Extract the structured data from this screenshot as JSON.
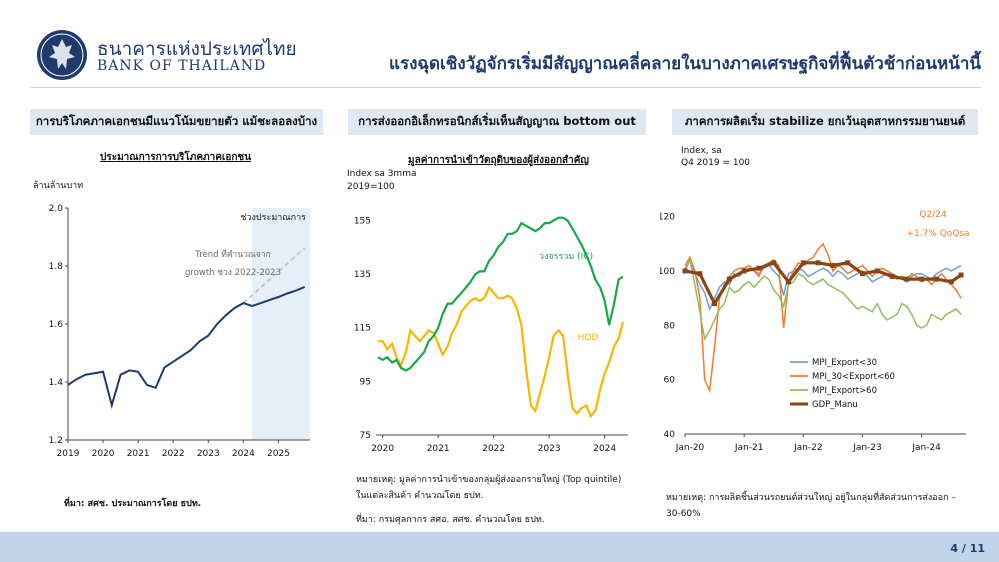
{
  "header": {
    "brand_th": "ธนาคารแห่งประเทศไทย",
    "brand_en": "BANK OF THAILAND",
    "title": "แรงฉุดเชิงวัฏจักรเริ่มมีสัญญาณคลี่คลายในบางภาคเศรษฐกิจที่ฟื้นตัวช้าก่อนหน้านี้"
  },
  "panels": [
    {
      "heading": "การบริโภคภาคเอกชนมีแนวโน้มขยายตัว แม้ชะลอลงบ้าง",
      "subheading": "ประมาณการการบริโภคภาคเอกชน",
      "unit_label": "ล้านล้านบาท",
      "source": "ที่มา: สศช. ประมาณการโดย ธปท."
    },
    {
      "heading": "การส่งออกอิเล็กทรอนิกส์เริ่มเห็นสัญญาณ bottom out",
      "subheading": "มูลค่าการนำเข้าวัตถุดิบของผู้ส่งออกสำคัญ",
      "unit_label_1": "Index sa 3mma",
      "unit_label_2": "2019=100",
      "note_1": "หมายเหตุ: มูลค่าการนำเข้าของกลุ่มผู้ส่งออกรายใหญ่ (Top quintile)",
      "note_2": "ในแต่ละสินค้า คำนวณโดย ธปท.",
      "source": "ที่มา: กรมศุลกากร สศอ. สศช. คำนวณโดย ธปท."
    },
    {
      "heading": "ภาคการผลิตเริ่ม stabilize ยกเว้นอุตสาหกรรมยานยนต์",
      "unit_label_1": "Index, sa",
      "unit_label_2": "Q4 2019 = 100",
      "note_1": "หมายเหตุ: การผลิตชิ้นส่วนรถยนต์ส่วนใหญ่ อยู่ในกลุ่มที่สัดส่วนการส่งออก –",
      "note_2": "30-60%"
    }
  ],
  "footer": {
    "page": "4 / 11"
  },
  "colors": {
    "navy": "#1f3b6e",
    "chart1_line": "#1f3b6e",
    "chart1_trend": "#c8c8c8",
    "chart1_forecast_shade": "#e6eef7",
    "ic": "#1aa64a",
    "hdd": "#f5b800",
    "mpi_lt30": "#6f9fd8",
    "mpi_30_60": "#ed7d31",
    "mpi_gt60": "#8fbf5a",
    "gdp_manu": "#8b4513",
    "footer_bar": "#c2d4ea"
  },
  "chart_data": [
    {
      "type": "line",
      "title": "ประมาณการการบริโภคภาคเอกชน",
      "ylabel": "ล้านล้านบาท",
      "ylim": [
        1.2,
        2.0
      ],
      "yticks": [
        "1.2",
        "1.4",
        "1.6",
        "1.8",
        "2.0"
      ],
      "xticks": [
        "2019",
        "2020",
        "2021",
        "2022",
        "2023",
        "2024",
        "2025"
      ],
      "forecast_label": "ช่วงประมาณการ",
      "forecast_start": 2024.25,
      "trend_annotation_1": "Trend ที่คำนวณจาก",
      "trend_annotation_2": "growth ช่วง 2022-2023",
      "series": [
        {
          "x": [
            2019.0,
            2019.25,
            2019.5,
            2019.75,
            2020.0,
            2020.25,
            2020.5,
            2020.75,
            2021.0,
            2021.25,
            2021.5,
            2021.75,
            2022.0,
            2022.25,
            2022.5,
            2022.75,
            2023.0,
            2023.25,
            2023.5,
            2023.75,
            2024.0,
            2024.25,
            2024.5,
            2024.75,
            2025.0,
            2025.25,
            2025.5,
            2025.75
          ],
          "values": [
            1.39,
            1.41,
            1.425,
            1.43,
            1.435,
            1.32,
            1.425,
            1.44,
            1.435,
            1.39,
            1.38,
            1.45,
            1.47,
            1.49,
            1.51,
            1.54,
            1.56,
            1.6,
            1.63,
            1.655,
            1.672,
            1.662,
            1.672,
            1.683,
            1.693,
            1.705,
            1.715,
            1.728
          ]
        },
        {
          "x": [
            2024.0,
            2025.75
          ],
          "values": [
            1.672,
            1.862
          ]
        }
      ]
    },
    {
      "type": "line",
      "ylabel": "Index sa 3mma",
      "ylim": [
        75,
        160
      ],
      "yticks": [
        "75",
        "95",
        "115",
        "135",
        "155"
      ],
      "xticks": [
        "2020",
        "2021",
        "2022",
        "2023",
        "2024"
      ],
      "series": [
        {
          "name": "วงจรรวม (IC)",
          "x": [
            2019.92,
            2020.0,
            2020.08,
            2020.17,
            2020.25,
            2020.33,
            2020.42,
            2020.5,
            2020.58,
            2020.67,
            2020.75,
            2020.83,
            2020.92,
            2021.0,
            2021.08,
            2021.17,
            2021.25,
            2021.33,
            2021.42,
            2021.5,
            2021.58,
            2021.67,
            2021.75,
            2021.83,
            2021.92,
            2022.0,
            2022.08,
            2022.17,
            2022.25,
            2022.33,
            2022.42,
            2022.5,
            2022.58,
            2022.67,
            2022.75,
            2022.83,
            2022.92,
            2023.0,
            2023.08,
            2023.17,
            2023.25,
            2023.33,
            2023.42,
            2023.5,
            2023.58,
            2023.67,
            2023.75,
            2023.83,
            2023.92,
            2024.0,
            2024.08,
            2024.17,
            2024.25,
            2024.33
          ],
          "values": [
            104,
            103,
            104,
            102,
            103,
            100,
            99,
            100,
            102,
            104,
            106,
            110,
            112,
            115,
            120,
            124,
            124,
            126,
            128,
            130,
            132,
            135,
            136,
            136,
            140,
            142,
            145,
            147,
            150,
            150,
            151,
            154,
            153,
            152,
            151,
            152,
            154,
            154,
            155,
            156,
            156,
            155,
            152,
            149,
            146,
            142,
            138,
            133,
            130,
            125,
            116,
            124,
            133,
            134
          ]
        },
        {
          "name": "HDD",
          "x": [
            2019.92,
            2020.0,
            2020.08,
            2020.17,
            2020.25,
            2020.33,
            2020.42,
            2020.5,
            2020.58,
            2020.67,
            2020.75,
            2020.83,
            2020.92,
            2021.0,
            2021.08,
            2021.17,
            2021.25,
            2021.33,
            2021.42,
            2021.5,
            2021.58,
            2021.67,
            2021.75,
            2021.83,
            2021.92,
            2022.0,
            2022.08,
            2022.17,
            2022.25,
            2022.33,
            2022.42,
            2022.5,
            2022.58,
            2022.67,
            2022.75,
            2022.83,
            2022.92,
            2023.0,
            2023.08,
            2023.17,
            2023.25,
            2023.33,
            2023.42,
            2023.5,
            2023.58,
            2023.67,
            2023.75,
            2023.83,
            2023.92,
            2024.0,
            2024.08,
            2024.17,
            2024.25,
            2024.33
          ],
          "values": [
            110,
            110,
            107,
            109,
            104,
            101,
            106,
            114,
            112,
            110,
            112,
            114,
            113,
            109,
            105,
            108,
            113,
            116,
            121,
            123,
            125,
            126,
            125,
            126,
            130,
            128,
            126,
            126,
            127,
            126,
            122,
            116,
            100,
            86,
            84,
            90,
            97,
            104,
            112,
            114,
            112,
            98,
            85,
            83,
            85,
            86,
            82,
            84,
            92,
            98,
            102,
            108,
            111,
            117
          ]
        }
      ]
    },
    {
      "type": "line",
      "ylabel": "Index, sa",
      "ylim": [
        40,
        125
      ],
      "yticks": [
        "40",
        "60",
        "80",
        "100",
        "120"
      ],
      "xticks": [
        "Jan-20",
        "Jan-21",
        "Jan-22",
        "Jan-23",
        "Jan-24"
      ],
      "annotation_1": "Q2/24",
      "annotation_2": "+1.7% QoQsa",
      "series": [
        {
          "name": "MPI_Export<30",
          "x": [
            0,
            1,
            2,
            3,
            4,
            5,
            6,
            7,
            8,
            9,
            10,
            11,
            12,
            13,
            14,
            15,
            16,
            17,
            18,
            19,
            20,
            21,
            22,
            23,
            24,
            25,
            26,
            27,
            28,
            29,
            30,
            31,
            32,
            33,
            34,
            35,
            36,
            37,
            38,
            39,
            40,
            41,
            42,
            43,
            44,
            45,
            46,
            47,
            48,
            49,
            50,
            51,
            52,
            53,
            54,
            55,
            56
          ],
          "values": [
            100,
            104,
            99,
            95,
            92,
            86,
            90,
            94,
            96,
            95,
            99,
            98,
            100,
            101,
            100,
            99,
            101,
            102,
            100,
            98,
            91,
            99,
            100,
            101,
            100,
            98,
            99,
            100,
            101,
            100,
            98,
            100,
            99,
            97,
            98,
            99,
            100,
            98,
            96,
            97,
            98,
            99,
            99,
            98,
            97,
            96,
            98,
            99,
            99,
            98,
            97,
            99,
            100,
            101,
            100,
            101,
            102
          ]
        },
        {
          "name": "MPI_30<Export<60",
          "x": [
            0,
            1,
            2,
            3,
            4,
            5,
            6,
            7,
            8,
            9,
            10,
            11,
            12,
            13,
            14,
            15,
            16,
            17,
            18,
            19,
            20,
            21,
            22,
            23,
            24,
            25,
            26,
            27,
            28,
            29,
            30,
            31,
            32,
            33,
            34,
            35,
            36,
            37,
            38,
            39,
            40,
            41,
            42,
            43,
            44,
            45,
            46,
            47,
            48,
            49,
            50,
            51,
            52,
            53,
            54,
            55,
            56
          ],
          "values": [
            102,
            105,
            100,
            90,
            60,
            56,
            72,
            90,
            95,
            98,
            100,
            101,
            101,
            102,
            100,
            98,
            102,
            103,
            104,
            102,
            79,
            96,
            100,
            103,
            102,
            104,
            105,
            108,
            110,
            106,
            100,
            102,
            101,
            99,
            100,
            101,
            102,
            100,
            98,
            100,
            101,
            100,
            99,
            97,
            98,
            97,
            99,
            98,
            96,
            97,
            95,
            97,
            99,
            97,
            95,
            93,
            90
          ]
        },
        {
          "name": "MPI_Export>60",
          "x": [
            0,
            1,
            2,
            3,
            4,
            5,
            6,
            7,
            8,
            9,
            10,
            11,
            12,
            13,
            14,
            15,
            16,
            17,
            18,
            19,
            20,
            21,
            22,
            23,
            24,
            25,
            26,
            27,
            28,
            29,
            30,
            31,
            32,
            33,
            34,
            35,
            36,
            37,
            38,
            39,
            40,
            41,
            42,
            43,
            44,
            45,
            46,
            47,
            48,
            49,
            50,
            51,
            52,
            53,
            54,
            55,
            56
          ],
          "values": [
            101,
            104,
            95,
            85,
            75,
            78,
            82,
            86,
            88,
            94,
            92,
            93,
            95,
            96,
            94,
            96,
            98,
            97,
            93,
            91,
            87,
            95,
            96,
            99,
            98,
            96,
            95,
            96,
            97,
            95,
            94,
            93,
            92,
            90,
            88,
            86,
            87,
            86,
            85,
            88,
            84,
            82,
            83,
            84,
            88,
            87,
            84,
            80,
            79,
            80,
            84,
            83,
            82,
            84,
            85,
            86,
            84
          ]
        },
        {
          "name": "GDP_Manu",
          "x": [
            0,
            3,
            6,
            9,
            12,
            15,
            18,
            21,
            24,
            27,
            30,
            33,
            36,
            39,
            42,
            45,
            48,
            51,
            54,
            56
          ],
          "values": [
            100,
            99,
            88,
            97,
            100,
            101,
            103,
            96,
            103,
            103,
            102,
            103,
            99,
            100,
            98,
            97,
            97,
            97,
            96,
            98.5
          ]
        }
      ]
    }
  ]
}
